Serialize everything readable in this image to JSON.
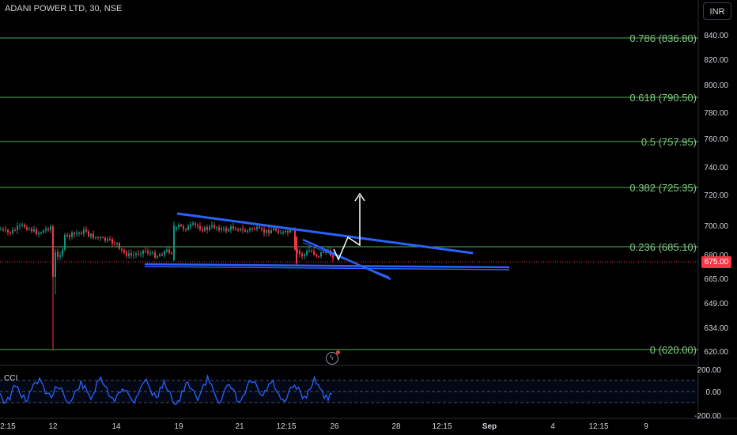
{
  "header": {
    "title": "ADANI POWER LTD, 30, NSE",
    "currency": "INR"
  },
  "current_price": "675.00",
  "fibonacci": [
    {
      "level": 0.786,
      "price": 836.8,
      "label": "0.786 (836.80)"
    },
    {
      "level": 0.618,
      "price": 790.5,
      "label": "0.618 (790.50)"
    },
    {
      "level": 0.5,
      "price": 757.95,
      "label": "0.5 (757.95)"
    },
    {
      "level": 0.382,
      "price": 725.35,
      "label": "0.382 (725.35)"
    },
    {
      "level": 0.236,
      "price": 685.1,
      "label": "0.236 (685.10)"
    },
    {
      "level": 0,
      "price": 620.0,
      "label": "0 (620.00)"
    }
  ],
  "price_axis_labels": [
    "840.00",
    "820.00",
    "800.00",
    "780.00",
    "760.00",
    "740.00",
    "720.00",
    "700.00",
    "680.00",
    "665.00",
    "649.00",
    "634.00",
    "620.00"
  ],
  "time_axis_labels": [
    "2:15",
    "12",
    "14",
    "19",
    "21",
    "12:15",
    "26",
    "28",
    "12:15",
    "Sep",
    "4",
    "12:15",
    "9"
  ],
  "indicator": {
    "name": "CCI",
    "axis_labels": [
      "200.00",
      "0.00",
      "-200.00"
    ]
  },
  "colors": {
    "fib_line": "#4caf50",
    "fib_label": "#81c784",
    "trendline": "#2962ff",
    "price_line": "#f23645",
    "up": "#089981",
    "down": "#f23645",
    "cci": "#2962ff"
  }
}
